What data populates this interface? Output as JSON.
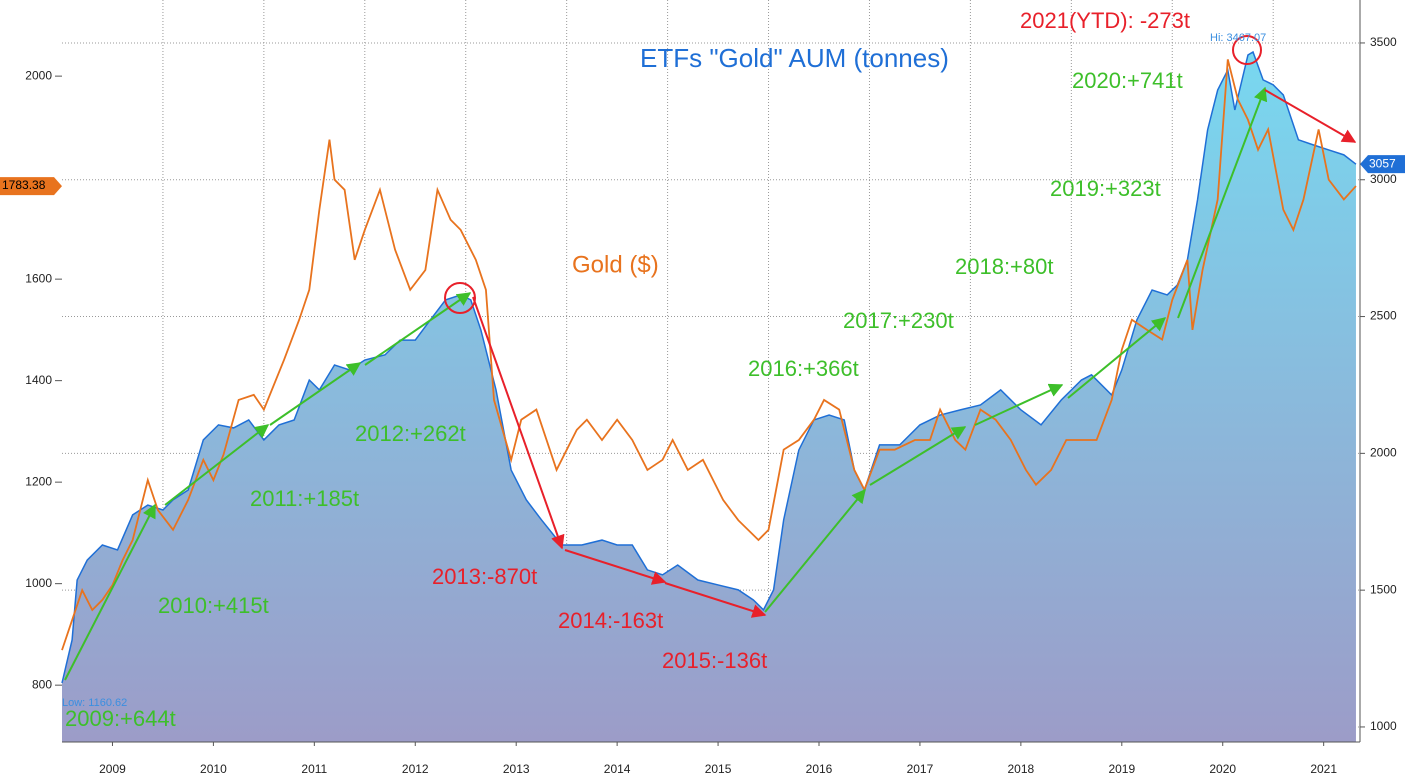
{
  "chart_data": {
    "type": "area-line",
    "series": [
      {
        "name": "ETFs \"Gold\" AUM (tonnes)",
        "color": "#1f6fd6",
        "axis": "y2",
        "x": [
          2009.0,
          2009.1,
          2009.15,
          2009.25,
          2009.4,
          2009.55,
          2009.7,
          2009.85,
          2010.0,
          2010.1,
          2010.25,
          2010.4,
          2010.55,
          2010.7,
          2010.85,
          2011.0,
          2011.15,
          2011.3,
          2011.45,
          2011.55,
          2011.7,
          2011.85,
          2012.0,
          2012.2,
          2012.35,
          2012.5,
          2012.65,
          2012.8,
          2012.95,
          2013.05,
          2013.15,
          2013.3,
          2013.45,
          2013.6,
          2013.75,
          2013.95,
          2014.15,
          2014.35,
          2014.5,
          2014.65,
          2014.8,
          2014.95,
          2015.1,
          2015.3,
          2015.5,
          2015.7,
          2015.85,
          2015.95,
          2016.05,
          2016.15,
          2016.3,
          2016.45,
          2016.6,
          2016.75,
          2016.85,
          2016.95,
          2017.1,
          2017.3,
          2017.5,
          2017.7,
          2017.9,
          2018.1,
          2018.3,
          2018.5,
          2018.7,
          2018.9,
          2019.1,
          2019.2,
          2019.4,
          2019.5,
          2019.65,
          2019.8,
          2019.95,
          2020.05,
          2020.15,
          2020.25,
          2020.35,
          2020.45,
          2020.55,
          2020.62,
          2020.75,
          2020.8,
          2020.9,
          2021.0,
          2021.1,
          2021.25,
          2021.4,
          2021.55,
          2021.7,
          2021.82
        ],
        "values": [
          1160.62,
          1318,
          1537,
          1610,
          1665,
          1647,
          1775,
          1811,
          1793,
          1830,
          1866,
          2049,
          2104,
          2093,
          2122,
          2049,
          2104,
          2122,
          2268,
          2232,
          2323,
          2305,
          2341,
          2360,
          2414,
          2414,
          2488,
          2561,
          2579,
          2561,
          2451,
          2232,
          1939,
          1830,
          1757,
          1665,
          1665,
          1683,
          1665,
          1665,
          1574,
          1556,
          1592,
          1537,
          1519,
          1501,
          1464,
          1428,
          1501,
          1757,
          2012,
          2122,
          2140,
          2122,
          1939,
          1866,
          2031,
          2031,
          2104,
          2140,
          2159,
          2177,
          2232,
          2159,
          2104,
          2195,
          2268,
          2287,
          2213,
          2305,
          2488,
          2597,
          2579,
          2615,
          2707,
          2926,
          3182,
          3328,
          3401,
          3255,
          3456,
          3467.07,
          3365,
          3347,
          3310,
          3146,
          3127,
          3109,
          3091,
          3057
        ]
      },
      {
        "name": "Gold ($)",
        "color": "#e8731e",
        "axis": "y",
        "x": [
          2009.0,
          2009.1,
          2009.2,
          2009.3,
          2009.4,
          2009.5,
          2009.6,
          2009.7,
          2009.85,
          2009.95,
          2010.1,
          2010.25,
          2010.4,
          2010.5,
          2010.6,
          2010.75,
          2010.9,
          2011.0,
          2011.2,
          2011.35,
          2011.45,
          2011.55,
          2011.65,
          2011.7,
          2011.8,
          2011.9,
          2012.0,
          2012.15,
          2012.3,
          2012.45,
          2012.6,
          2012.72,
          2012.85,
          2012.95,
          2013.1,
          2013.2,
          2013.28,
          2013.45,
          2013.55,
          2013.7,
          2013.9,
          2014.1,
          2014.2,
          2014.35,
          2014.5,
          2014.65,
          2014.8,
          2014.95,
          2015.05,
          2015.2,
          2015.35,
          2015.55,
          2015.7,
          2015.9,
          2016.0,
          2016.15,
          2016.3,
          2016.45,
          2016.55,
          2016.7,
          2016.85,
          2016.95,
          2017.1,
          2017.25,
          2017.45,
          2017.6,
          2017.7,
          2017.85,
          2017.95,
          2018.1,
          2018.25,
          2018.4,
          2018.55,
          2018.65,
          2018.8,
          2018.95,
          2019.1,
          2019.25,
          2019.4,
          2019.5,
          2019.6,
          2019.75,
          2019.9,
          2020.0,
          2020.15,
          2020.2,
          2020.3,
          2020.45,
          2020.55,
          2020.65,
          2020.75,
          2020.85,
          2020.95,
          2021.1,
          2021.2,
          2021.3,
          2021.45,
          2021.55,
          2021.7,
          2021.82
        ],
        "values": [
          869,
          928,
          987,
          948,
          968,
          997,
          1046,
          1086,
          1204,
          1145,
          1106,
          1165,
          1244,
          1204,
          1254,
          1362,
          1372,
          1343,
          1441,
          1520,
          1579,
          1737,
          1875,
          1796,
          1776,
          1638,
          1697,
          1776,
          1658,
          1579,
          1618,
          1776,
          1717,
          1697,
          1638,
          1579,
          1362,
          1244,
          1323,
          1343,
          1224,
          1303,
          1323,
          1283,
          1323,
          1283,
          1224,
          1244,
          1283,
          1224,
          1244,
          1165,
          1125,
          1086,
          1106,
          1264,
          1283,
          1323,
          1362,
          1343,
          1224,
          1185,
          1264,
          1264,
          1283,
          1283,
          1343,
          1283,
          1264,
          1343,
          1323,
          1283,
          1224,
          1195,
          1224,
          1283,
          1283,
          1283,
          1362,
          1461,
          1520,
          1500,
          1481,
          1559,
          1638,
          1500,
          1618,
          1757,
          2033,
          1954,
          1914,
          1855,
          1895,
          1737,
          1697,
          1757,
          1895,
          1796,
          1757,
          1783.38
        ]
      }
    ],
    "xlim": [
      2009.0,
      2021.86
    ],
    "xticks": [
      {
        "value": 2009.5,
        "label": "2009"
      },
      {
        "value": 2010.5,
        "label": "2010"
      },
      {
        "value": 2011.5,
        "label": "2011"
      },
      {
        "value": 2012.5,
        "label": "2012"
      },
      {
        "value": 2013.5,
        "label": "2013"
      },
      {
        "value": 2014.5,
        "label": "2014"
      },
      {
        "value": 2015.5,
        "label": "2015"
      },
      {
        "value": 2016.5,
        "label": "2016"
      },
      {
        "value": 2017.5,
        "label": "2017"
      },
      {
        "value": 2018.5,
        "label": "2018"
      },
      {
        "value": 2019.5,
        "label": "2019"
      },
      {
        "value": 2020.5,
        "label": "2020"
      },
      {
        "value": 2021.5,
        "label": "2021"
      }
    ],
    "ylim": [
      688,
      2150
    ],
    "yticks": [
      800,
      1000,
      1200,
      1400,
      1600,
      2000
    ],
    "y2lim": [
      945,
      3657
    ],
    "y2ticks": [
      1000,
      1500,
      2000,
      2500,
      3000,
      3500
    ],
    "grid": true,
    "annotations": [
      {
        "text": "2021(YTD): -273t",
        "color": "#e8202a"
      },
      {
        "text": "2020:+741t",
        "color": "#3dbf2a"
      },
      {
        "text": "2019:+323t",
        "color": "#3dbf2a"
      },
      {
        "text": "2018:+80t",
        "color": "#3dbf2a"
      },
      {
        "text": "2017:+230t",
        "color": "#3dbf2a"
      },
      {
        "text": "2016:+366t",
        "color": "#3dbf2a"
      },
      {
        "text": "2012:+262t",
        "color": "#3dbf2a"
      },
      {
        "text": "2011:+185t",
        "color": "#3dbf2a"
      },
      {
        "text": "2010:+415t",
        "color": "#3dbf2a"
      },
      {
        "text": "2009:+644t",
        "color": "#3dbf2a"
      },
      {
        "text": "2013:-870t",
        "color": "#e8202a"
      },
      {
        "text": "2014:-163t",
        "color": "#e8202a"
      },
      {
        "text": "2015:-136t",
        "color": "#e8202a"
      },
      {
        "text": "Hi: 3467.07",
        "color": "#3b8fe0"
      },
      {
        "text": "Low: 1160.62",
        "color": "#3b8fe0"
      }
    ]
  }
}
